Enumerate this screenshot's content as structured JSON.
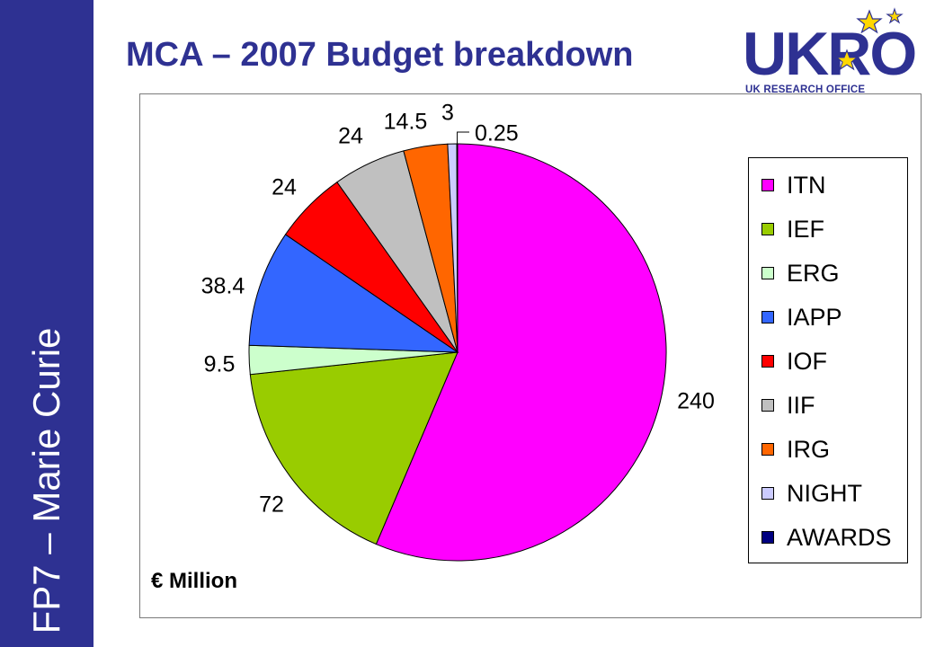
{
  "sidebar": {
    "text": "FP7 – Marie Curie",
    "color": "#2e3192"
  },
  "header": {
    "title": "MCA – 2007 Budget breakdown"
  },
  "logo": {
    "word": "UKRO",
    "subtitle": "UK RESEARCH OFFICE",
    "star_color": "#ffd700"
  },
  "chart_note": "€ Million",
  "chart_data": {
    "type": "pie",
    "slices": [
      {
        "label": "ITN",
        "value": 240,
        "value_label": "240",
        "color": "#ff00ff"
      },
      {
        "label": "IEF",
        "value": 72,
        "value_label": "72",
        "color": "#99cc00"
      },
      {
        "label": "ERG",
        "value": 9.5,
        "value_label": "9.5",
        "color": "#ccffcc"
      },
      {
        "label": "IAPP",
        "value": 38.4,
        "value_label": "38.4",
        "color": "#3366ff"
      },
      {
        "label": "IOF",
        "value": 24,
        "value_label": "24",
        "color": "#ff0000"
      },
      {
        "label": "IIF",
        "value": 24,
        "value_label": "24",
        "color": "#c0c0c0"
      },
      {
        "label": "IRG",
        "value": 14.5,
        "value_label": "14.5",
        "color": "#ff6600"
      },
      {
        "label": "NIGHT",
        "value": 3,
        "value_label": "3",
        "color": "#ccccff"
      },
      {
        "label": "AWARDS",
        "value": 0.25,
        "value_label": "0.25",
        "color": "#000080"
      }
    ],
    "legend_placement": "right"
  }
}
